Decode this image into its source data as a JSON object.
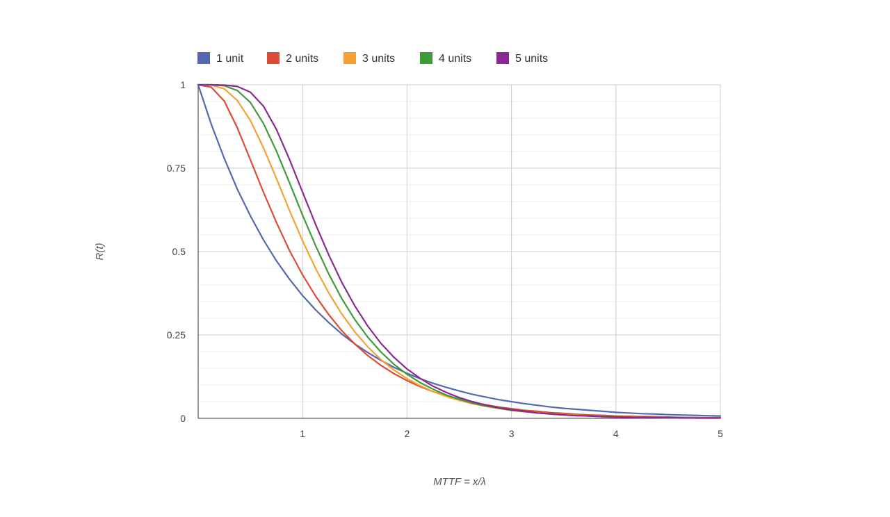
{
  "chart_data": {
    "type": "line",
    "xlabel": "MTTF = x/λ",
    "ylabel": "R(t)",
    "xlim": [
      0,
      5
    ],
    "ylim": [
      0,
      1
    ],
    "x_ticks": [
      "1",
      "2",
      "3",
      "4",
      "5"
    ],
    "y_ticks": [
      "0",
      "0.25",
      "0.5",
      "0.75",
      "1"
    ],
    "grid": true,
    "legend_position": "top",
    "x": [
      0,
      0.125,
      0.25,
      0.375,
      0.5,
      0.625,
      0.75,
      0.875,
      1,
      1.125,
      1.25,
      1.375,
      1.5,
      1.625,
      1.75,
      1.875,
      2,
      2.125,
      2.25,
      2.375,
      2.5,
      2.625,
      2.75,
      2.875,
      3,
      3.125,
      3.25,
      3.375,
      3.5,
      3.625,
      3.75,
      3.875,
      4,
      4.125,
      4.25,
      4.375,
      4.5,
      4.625,
      4.75,
      4.875,
      5
    ],
    "series": [
      {
        "name": "1 unit",
        "color": "#5567b1",
        "values": [
          1,
          0.882,
          0.779,
          0.687,
          0.607,
          0.535,
          0.472,
          0.417,
          0.368,
          0.325,
          0.287,
          0.253,
          0.223,
          0.197,
          0.174,
          0.153,
          0.135,
          0.119,
          0.105,
          0.093,
          0.082,
          0.072,
          0.064,
          0.056,
          0.05,
          0.044,
          0.039,
          0.034,
          0.03,
          0.027,
          0.024,
          0.021,
          0.018,
          0.016,
          0.014,
          0.013,
          0.011,
          0.01,
          0.009,
          0.008,
          0.007
        ]
      },
      {
        "name": "2 units",
        "color": "#dc4b33",
        "values": [
          1,
          0.993,
          0.951,
          0.871,
          0.775,
          0.678,
          0.587,
          0.503,
          0.43,
          0.366,
          0.311,
          0.263,
          0.223,
          0.188,
          0.159,
          0.134,
          0.113,
          0.095,
          0.08,
          0.068,
          0.057,
          0.048,
          0.041,
          0.034,
          0.029,
          0.024,
          0.021,
          0.017,
          0.015,
          0.012,
          0.01,
          0.009,
          0.007,
          0.006,
          0.005,
          0.005,
          0.004,
          0.003,
          0.003,
          0.002,
          0.002
        ]
      },
      {
        "name": "3 units",
        "color": "#f5a133",
        "values": [
          1,
          0.999,
          0.988,
          0.953,
          0.893,
          0.811,
          0.719,
          0.623,
          0.532,
          0.449,
          0.376,
          0.313,
          0.259,
          0.214,
          0.176,
          0.145,
          0.119,
          0.098,
          0.08,
          0.066,
          0.054,
          0.044,
          0.036,
          0.03,
          0.024,
          0.02,
          0.016,
          0.013,
          0.011,
          0.009,
          0.007,
          0.006,
          0.005,
          0.004,
          0.003,
          0.003,
          0.002,
          0.002,
          0.002,
          0.001,
          0.001
        ]
      },
      {
        "name": "4 units",
        "color": "#3f9b38",
        "values": [
          1,
          1,
          0.997,
          0.983,
          0.947,
          0.884,
          0.801,
          0.706,
          0.609,
          0.517,
          0.433,
          0.359,
          0.296,
          0.243,
          0.199,
          0.162,
          0.132,
          0.107,
          0.087,
          0.07,
          0.057,
          0.046,
          0.037,
          0.03,
          0.024,
          0.02,
          0.016,
          0.013,
          0.01,
          0.008,
          0.007,
          0.005,
          0.004,
          0.004,
          0.003,
          0.002,
          0.002,
          0.002,
          0.001,
          0.001,
          0.001
        ]
      },
      {
        "name": "5 units",
        "color": "#8a2a90",
        "values": [
          1,
          1,
          0.999,
          0.995,
          0.978,
          0.936,
          0.866,
          0.776,
          0.678,
          0.581,
          0.49,
          0.408,
          0.337,
          0.276,
          0.225,
          0.183,
          0.148,
          0.12,
          0.096,
          0.078,
          0.062,
          0.05,
          0.04,
          0.032,
          0.026,
          0.021,
          0.016,
          0.013,
          0.01,
          0.008,
          0.007,
          0.005,
          0.004,
          0.003,
          0.003,
          0.002,
          0.002,
          0.001,
          0.001,
          0.001,
          0.001
        ]
      }
    ]
  }
}
